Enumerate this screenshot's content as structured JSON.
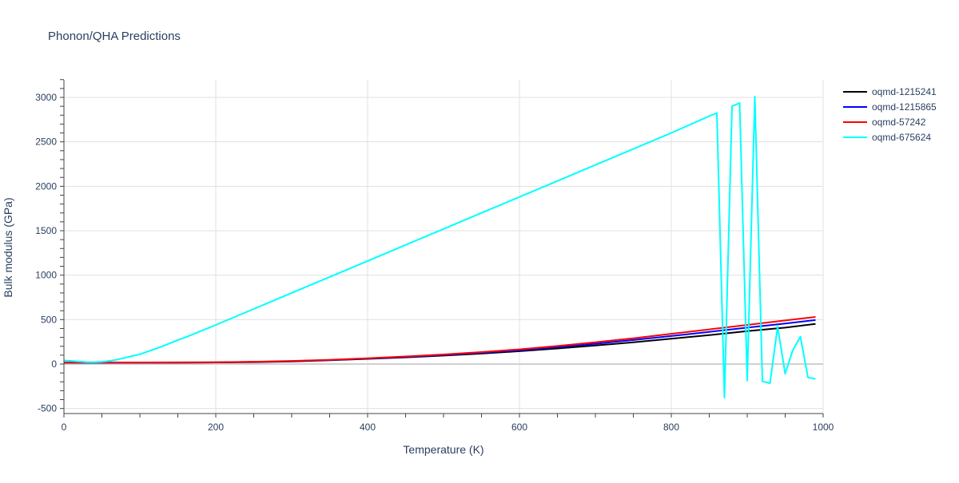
{
  "chart_data": {
    "type": "line",
    "title": "Phonon/QHA Predictions",
    "xlabel": "Temperature (K)",
    "ylabel": "Bulk modulus (GPa)",
    "xlim": [
      0,
      1000
    ],
    "ylim": [
      -560,
      3200
    ],
    "xticks": [
      0,
      200,
      400,
      600,
      800,
      1000
    ],
    "yticks": [
      -500,
      0,
      500,
      1000,
      1500,
      2000,
      2500,
      3000
    ],
    "grid": true,
    "legend_position": "right",
    "series": [
      {
        "name": "oqmd-1215241",
        "color": "#000000",
        "x": [
          0,
          50,
          100,
          150,
          200,
          250,
          300,
          350,
          400,
          450,
          500,
          550,
          600,
          650,
          700,
          750,
          800,
          850,
          900,
          950,
          990
        ],
        "y": [
          15,
          15,
          15,
          16,
          18,
          22,
          30,
          42,
          58,
          75,
          95,
          118,
          145,
          175,
          208,
          245,
          285,
          325,
          370,
          410,
          452
        ]
      },
      {
        "name": "oqmd-1215865",
        "color": "#0000ff",
        "x": [
          0,
          50,
          100,
          150,
          200,
          250,
          300,
          350,
          400,
          450,
          500,
          550,
          600,
          650,
          700,
          750,
          800,
          850,
          900,
          950,
          990
        ],
        "y": [
          16,
          16,
          16,
          17,
          19,
          24,
          32,
          45,
          62,
          80,
          102,
          127,
          155,
          190,
          228,
          270,
          315,
          362,
          410,
          455,
          495
        ]
      },
      {
        "name": "oqmd-57242",
        "color": "#ff0000",
        "x": [
          0,
          50,
          100,
          150,
          200,
          250,
          300,
          350,
          400,
          450,
          500,
          550,
          600,
          650,
          700,
          750,
          800,
          850,
          900,
          950,
          990
        ],
        "y": [
          18,
          18,
          18,
          19,
          21,
          26,
          35,
          48,
          65,
          85,
          108,
          135,
          165,
          203,
          245,
          290,
          340,
          390,
          440,
          490,
          530
        ]
      },
      {
        "name": "oqmd-675624",
        "color": "#00ffff",
        "x": [
          0,
          10,
          20,
          30,
          40,
          50,
          60,
          70,
          80,
          90,
          100,
          110,
          120,
          130,
          140,
          150,
          160,
          170,
          180,
          190,
          200,
          250,
          300,
          350,
          400,
          450,
          500,
          550,
          600,
          650,
          700,
          750,
          800,
          850,
          860,
          870,
          880,
          890,
          900,
          910,
          920,
          930,
          940,
          950,
          960,
          970,
          980,
          990
        ],
        "y": [
          40,
          35,
          28,
          22,
          20,
          25,
          35,
          50,
          70,
          90,
          110,
          140,
          170,
          200,
          235,
          270,
          300,
          335,
          370,
          405,
          440,
          620,
          800,
          980,
          1160,
          1340,
          1520,
          1700,
          1880,
          2060,
          2240,
          2420,
          2600,
          2790,
          2824,
          -378,
          2900,
          2937,
          -186,
          3010,
          -195,
          -216,
          422,
          -110,
          155,
          308,
          -150,
          -168
        ]
      }
    ]
  }
}
